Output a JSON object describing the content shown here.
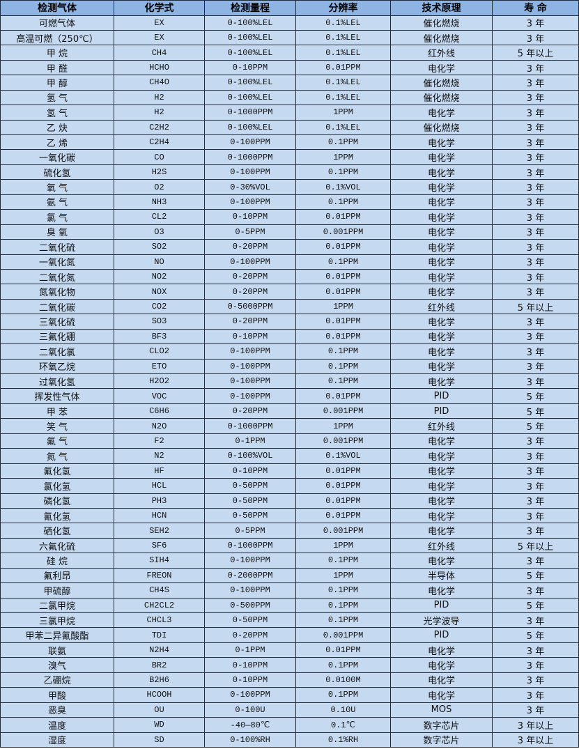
{
  "colors": {
    "header_bg": "#8db4e2",
    "row_bg": "#c5d9f1",
    "border": "#1f2a3a"
  },
  "headers": [
    "检测气体",
    "化学式",
    "检测量程",
    "分辨率",
    "技术原理",
    "寿 命"
  ],
  "rows": [
    [
      "可燃气体",
      "EX",
      "0-100%LEL",
      "0.1%LEL",
      "催化燃烧",
      "3 年"
    ],
    [
      "高温可燃（250℃）",
      "EX",
      "0-100%LEL",
      "0.1%LEL",
      "催化燃烧",
      "3 年"
    ],
    [
      "甲 烷",
      "CH4",
      "0-100%LEL",
      "0.1%LEL",
      "红外线",
      "5 年以上"
    ],
    [
      "甲 醛",
      "HCHO",
      "0-10PPM",
      "0.01PPM",
      "电化学",
      "3 年"
    ],
    [
      "甲 醇",
      "CH4O",
      "0-100%LEL",
      "0.1%LEL",
      "催化燃烧",
      "3 年"
    ],
    [
      "氢 气",
      "H2",
      "0-100%LEL",
      "0.1%LEL",
      "催化燃烧",
      "3 年"
    ],
    [
      "氢 气",
      "H2",
      "0-1000PPM",
      "1PPM",
      "电化学",
      "3 年"
    ],
    [
      "乙 炔",
      "C2H2",
      "0-100%LEL",
      "0.1%LEL",
      "催化燃烧",
      "3 年"
    ],
    [
      "乙 烯",
      "C2H4",
      "0-100PPM",
      "0.1PPM",
      "电化学",
      "3 年"
    ],
    [
      "一氧化碳",
      "CO",
      "0-1000PPM",
      "1PPM",
      "电化学",
      "3 年"
    ],
    [
      "硫化氢",
      "H2S",
      "0-100PPM",
      "0.1PPM",
      "电化学",
      "3 年"
    ],
    [
      "氧 气",
      "O2",
      "0-30%VOL",
      "0.1%VOL",
      "电化学",
      "3 年"
    ],
    [
      "氨 气",
      "NH3",
      "0-100PPM",
      "0.1PPM",
      "电化学",
      "3 年"
    ],
    [
      "氯 气",
      "CL2",
      "0-10PPM",
      "0.01PPM",
      "电化学",
      "3 年"
    ],
    [
      "臭 氧",
      "O3",
      "0-5PPM",
      "0.001PPM",
      "电化学",
      "3 年"
    ],
    [
      "二氧化硫",
      "SO2",
      "0-20PPM",
      "0.01PPM",
      "电化学",
      "3 年"
    ],
    [
      "一氧化氮",
      "NO",
      "0-100PPM",
      "0.1PPM",
      "电化学",
      "3 年"
    ],
    [
      "二氧化氮",
      "NO2",
      "0-20PPM",
      "0.01PPM",
      "电化学",
      "3 年"
    ],
    [
      "氮氧化物",
      "NOX",
      "0-20PPM",
      "0.01PPM",
      "电化学",
      "3 年"
    ],
    [
      "二氧化碳",
      "CO2",
      "0-5000PPM",
      "1PPM",
      "红外线",
      "5 年以上"
    ],
    [
      "三氧化硫",
      "SO3",
      "0-20PPM",
      "0.01PPM",
      "电化学",
      "3 年"
    ],
    [
      "三氟化硼",
      "BF3",
      "0-10PPM",
      "0.01PPM",
      "电化学",
      "3 年"
    ],
    [
      "二氧化氯",
      "CLO2",
      "0-100PPM",
      "0.1PPM",
      "电化学",
      "3 年"
    ],
    [
      "环氧乙烷",
      "ETO",
      "0-100PPM",
      "0.1PPM",
      "电化学",
      "3 年"
    ],
    [
      "过氧化氢",
      "H2O2",
      "0-100PPM",
      "0.1PPM",
      "电化学",
      "3 年"
    ],
    [
      "挥发性气体",
      "VOC",
      "0-100PPM",
      "0.01PPM",
      "PID",
      "5 年"
    ],
    [
      "甲 苯",
      "C6H6",
      "0-20PPM",
      "0.001PPM",
      "PID",
      "5 年"
    ],
    [
      "笑 气",
      "N2O",
      "0-1000PPM",
      "1PPM",
      "红外线",
      "5 年"
    ],
    [
      "氟 气",
      "F2",
      "0-1PPM",
      "0.001PPM",
      "电化学",
      "3 年"
    ],
    [
      "氮 气",
      "N2",
      "0-100%VOL",
      "0.1%VOL",
      "电化学",
      "3 年"
    ],
    [
      "氟化氢",
      "HF",
      "0-10PPM",
      "0.01PPM",
      "电化学",
      "3 年"
    ],
    [
      "氯化氢",
      "HCL",
      "0-50PPM",
      "0.01PPM",
      "电化学",
      "3 年"
    ],
    [
      "磷化氢",
      "PH3",
      "0-50PPM",
      "0.01PPM",
      "电化学",
      "3 年"
    ],
    [
      "氰化氢",
      "HCN",
      "0-50PPM",
      "0.01PPM",
      "电化学",
      "3 年"
    ],
    [
      "硒化氢",
      "SEH2",
      "0-5PPM",
      "0.001PPM",
      "电化学",
      "3 年"
    ],
    [
      "六氟化硫",
      "SF6",
      "0-1000PPM",
      "1PPM",
      "红外线",
      "5 年以上"
    ],
    [
      "硅 烷",
      "SIH4",
      "0-100PPM",
      "0.1PPM",
      "电化学",
      "3 年"
    ],
    [
      "氟利昂",
      "FREON",
      "0-2000PPM",
      "1PPM",
      "半导体",
      "5 年"
    ],
    [
      "甲硫醇",
      "CH4S",
      "0-100PPM",
      "0.1PPM",
      "电化学",
      "3 年"
    ],
    [
      "二氯甲烷",
      "CH2CL2",
      "0-500PPM",
      "0.1PPM",
      "PID",
      "5 年"
    ],
    [
      "三氯甲烷",
      "CHCL3",
      "0-50PPM",
      "0.1PPM",
      "光学波导",
      "3 年"
    ],
    [
      "甲苯二异氰酸酯",
      "TDI",
      "0-20PPM",
      "0.001PPM",
      "PID",
      "5 年"
    ],
    [
      "联氨",
      "N2H4",
      "0-1PPM",
      "0.01PPM",
      "电化学",
      "3 年"
    ],
    [
      "溴气",
      "BR2",
      "0-10PPM",
      "0.1PPM",
      "电化学",
      "3 年"
    ],
    [
      "乙硼烷",
      "B2H6",
      "0-10PPM",
      "0.0100M",
      "电化学",
      "3 年"
    ],
    [
      "甲酸",
      "HCOOH",
      "0-100PPM",
      "0.1PPM",
      "电化学",
      "3 年"
    ],
    [
      "恶臭",
      "OU",
      "0-100U",
      "0.10U",
      "MOS",
      "3 年"
    ],
    [
      "温度",
      "WD",
      "-40—80℃",
      "0.1℃",
      "数字芯片",
      "3 年以上"
    ],
    [
      "湿度",
      "SD",
      "0-100%RH",
      "0.1%RH",
      "数字芯片",
      "3 年以上"
    ]
  ]
}
